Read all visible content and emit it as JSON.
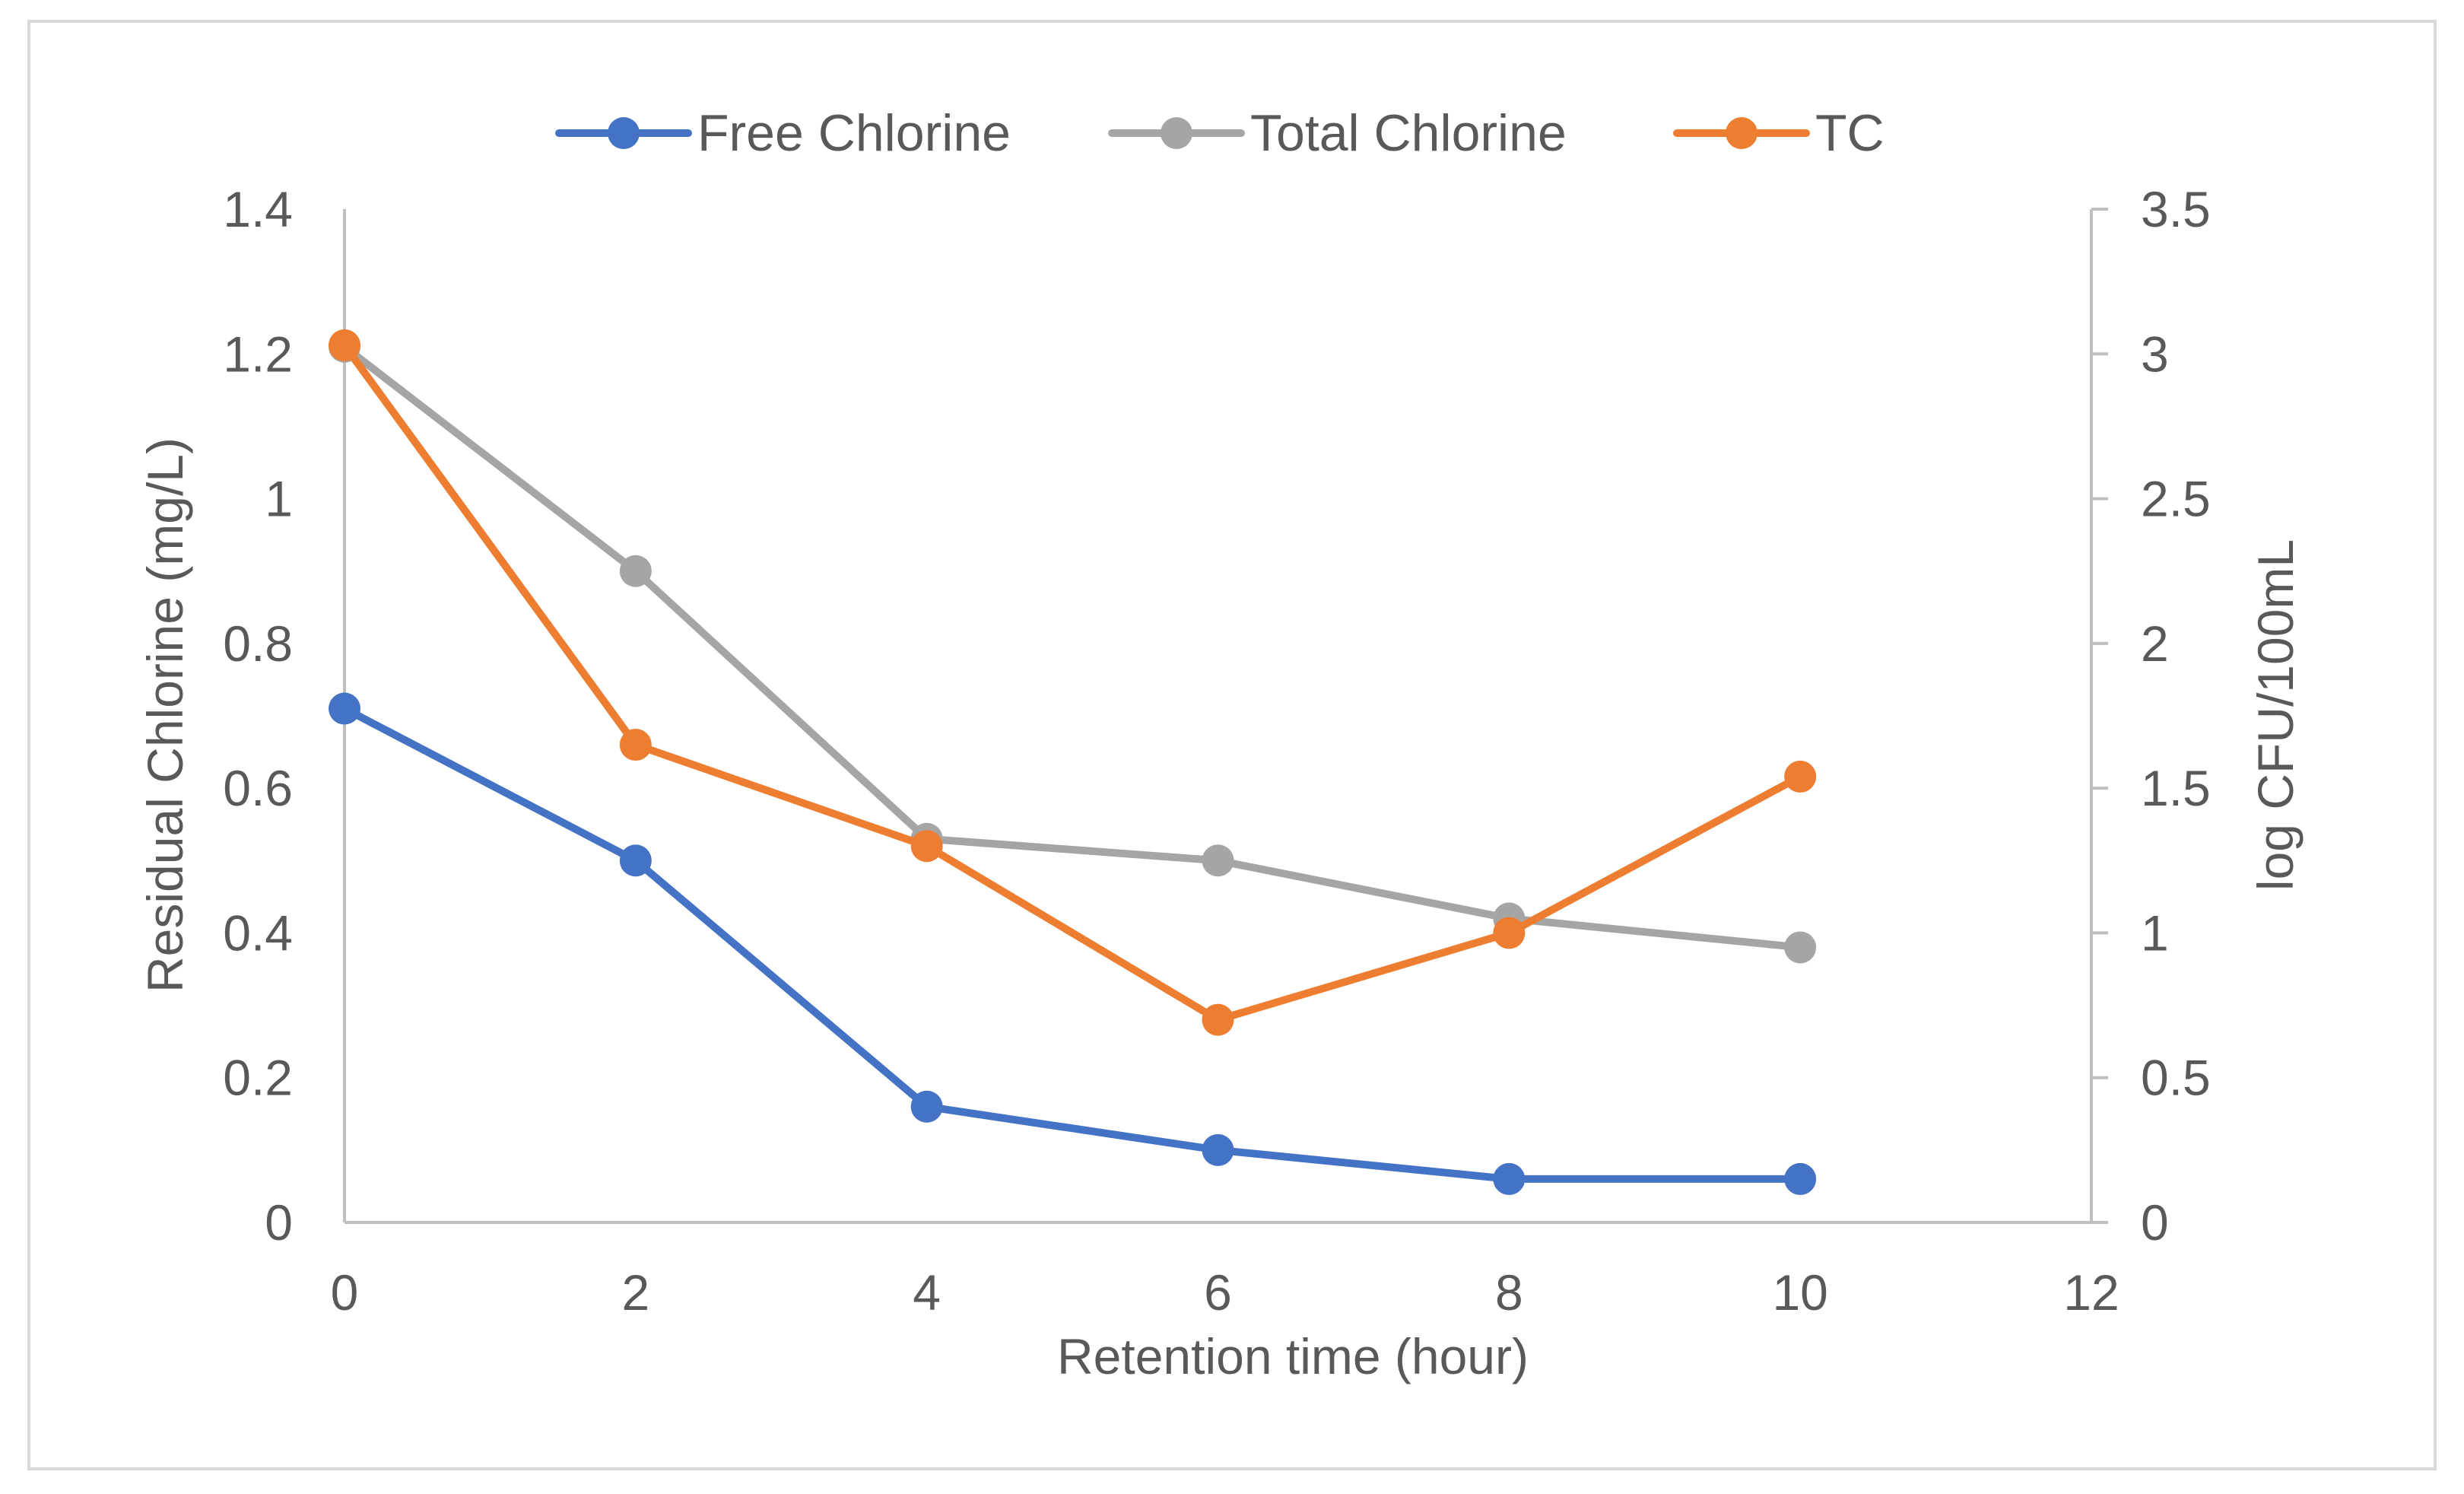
{
  "chart_data": {
    "type": "line",
    "title": "",
    "xlabel": "Retention time (hour)",
    "ylabel": "Residual Chlorine (mg/L)",
    "y2label": "log CFU/100mL",
    "xlim": [
      0,
      12
    ],
    "ylim": [
      0,
      1.4
    ],
    "y2lim": [
      0,
      3.5
    ],
    "x_ticks": [
      "0",
      "2",
      "4",
      "6",
      "8",
      "10",
      "12"
    ],
    "y_ticks": [
      "0",
      "0.2",
      "0.4",
      "0.6",
      "0.8",
      "1",
      "1.2",
      "1.4"
    ],
    "y2_ticks": [
      "0",
      "0.5",
      "1",
      "1.5",
      "2",
      "2.5",
      "3",
      "3.5"
    ],
    "grid": false,
    "legend_position": "top",
    "x": [
      0,
      2,
      4,
      6,
      8,
      10
    ],
    "series": [
      {
        "name": "Free Chlorine",
        "axis": "left",
        "color": "#4472C4",
        "values": [
          0.71,
          0.5,
          0.16,
          0.1,
          0.06,
          0.06
        ]
      },
      {
        "name": "Total Chlorine",
        "axis": "left",
        "color": "#A5A5A5",
        "values": [
          1.21,
          0.9,
          0.53,
          0.5,
          0.42,
          0.38
        ]
      },
      {
        "name": "TC",
        "axis": "right",
        "color": "#ED7D31",
        "values": [
          3.03,
          1.65,
          1.3,
          0.7,
          1.0,
          1.54
        ]
      }
    ]
  }
}
